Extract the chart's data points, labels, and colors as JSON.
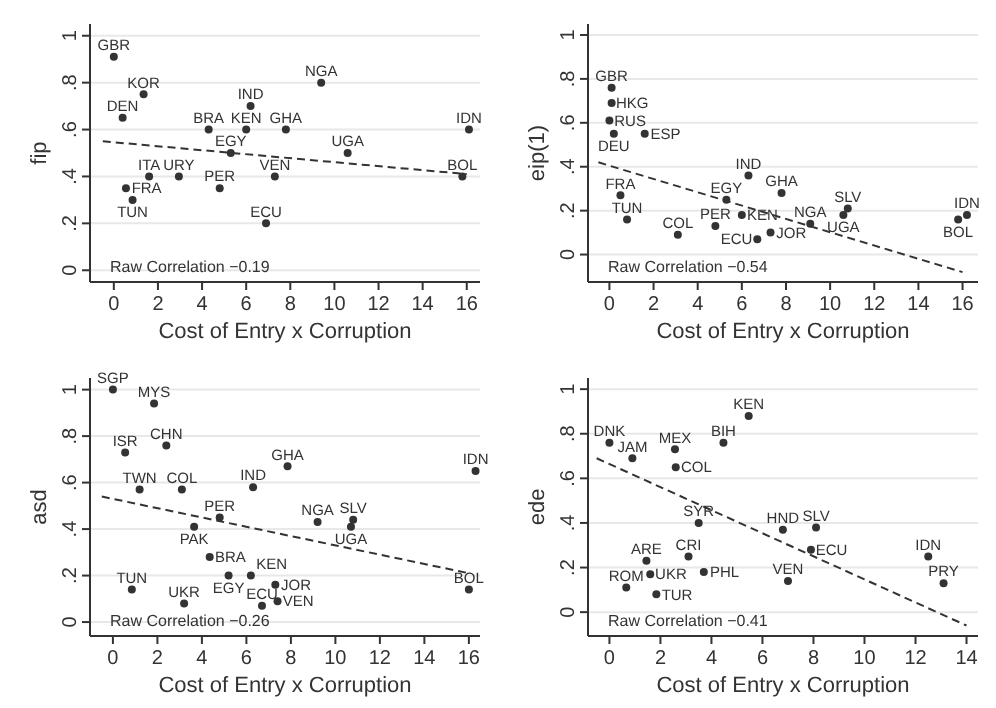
{
  "chart_data": [
    {
      "type": "scatter",
      "xlabel": "Cost of Entry x Corruption",
      "ylabel": "fip",
      "xlim": [
        -1.08,
        16.6
      ],
      "ylim": [
        -0.05,
        1.05
      ],
      "xticks": [
        0,
        2,
        4,
        6,
        8,
        10,
        12,
        14,
        16
      ],
      "yticks": [
        {
          "value": 0,
          "label": "0"
        },
        {
          "value": 0.2,
          "label": ".2"
        },
        {
          "value": 0.4,
          "label": ".4"
        },
        {
          "value": 0.6,
          "label": ".6"
        },
        {
          "value": 0.8,
          "label": ".8"
        },
        {
          "value": 1,
          "label": "1"
        }
      ],
      "grid": "y",
      "series": [
        {
          "type": "scatter",
          "marker": "circle",
          "color": "#333333",
          "x": [
            0,
            1.35,
            9.4,
            6.2,
            0.4,
            4.3,
            6,
            7.8,
            16.1,
            5.3,
            10.6,
            1.6,
            2.95,
            7.3,
            15.8,
            0.55,
            4.8,
            0.85,
            6.9
          ],
          "values": [
            0.91,
            0.75,
            0.8,
            0.7,
            0.65,
            0.6,
            0.6,
            0.6,
            0.6,
            0.5,
            0.5,
            0.4,
            0.4,
            0.4,
            0.4,
            0.35,
            0.35,
            0.3,
            0.2
          ],
          "value_labels": [
            "GBR",
            "KOR",
            "NGA",
            "IND",
            "DEN",
            "BRA",
            "KEN",
            "GHA",
            "IDN",
            "EGY",
            "UGA",
            "ITA",
            "URY",
            "VEN",
            "BOL",
            "FRA",
            "PER",
            "TUN",
            "ECU"
          ]
        },
        {
          "type": "line",
          "color": "#333333",
          "line_style": "dashed",
          "x": [
            -0.5,
            16
          ],
          "values": [
            0.55,
            0.41
          ]
        }
      ],
      "annotations": [
        "Raw Correlation −0.19"
      ]
    },
    {
      "type": "scatter",
      "xlabel": "Cost of Entry x Corruption",
      "ylabel": "eip(1)",
      "xlim": [
        -0.97,
        16.7
      ],
      "ylim": [
        -0.125,
        1.05
      ],
      "xticks": [
        0,
        2,
        4,
        6,
        8,
        10,
        12,
        14,
        16
      ],
      "yticks": [
        {
          "value": 0,
          "label": "0"
        },
        {
          "value": 0.2,
          "label": ".2"
        },
        {
          "value": 0.4,
          "label": ".4"
        },
        {
          "value": 0.6,
          "label": ".6"
        },
        {
          "value": 0.8,
          "label": ".8"
        },
        {
          "value": 1,
          "label": "1"
        }
      ],
      "grid": "y",
      "series": [
        {
          "type": "scatter",
          "marker": "circle",
          "color": "#333333",
          "x": [
            0.1,
            0.1,
            0,
            0.2,
            1.6,
            6.3,
            7.8,
            0.5,
            5.3,
            10.8,
            10.6,
            6,
            16.2,
            15.8,
            0.8,
            9.1,
            4.8,
            7.3,
            3.1,
            6.7
          ],
          "values": [
            0.76,
            0.69,
            0.61,
            0.55,
            0.55,
            0.36,
            0.28,
            0.27,
            0.25,
            0.21,
            0.18,
            0.18,
            0.18,
            0.16,
            0.16,
            0.14,
            0.13,
            0.1,
            0.09,
            0.07
          ],
          "value_labels": [
            "GBR",
            "HKG",
            "RUS",
            "DEU",
            "ESP",
            "IND",
            "GHA",
            "FRA",
            "EGY",
            "SLV",
            "UGA",
            "KEN",
            "IDN",
            "BOL",
            "TUN",
            "NGA",
            "PER",
            "JOR",
            "COL",
            "ECU"
          ]
        },
        {
          "type": "line",
          "color": "#333333",
          "line_style": "dashed",
          "x": [
            -0.5,
            16
          ],
          "values": [
            0.42,
            -0.08
          ]
        }
      ],
      "annotations": [
        "Raw Correlation −0.54"
      ]
    },
    {
      "type": "scatter",
      "xlabel": "Cost of Entry x Corruption",
      "ylabel": "asd",
      "xlim": [
        -1.03,
        16.5
      ],
      "ylim": [
        -0.06,
        1.05
      ],
      "xticks": [
        0,
        2,
        4,
        6,
        8,
        10,
        12,
        14,
        16
      ],
      "yticks": [
        {
          "value": 0,
          "label": "0"
        },
        {
          "value": 0.2,
          "label": ".2"
        },
        {
          "value": 0.4,
          "label": ".4"
        },
        {
          "value": 0.6,
          "label": ".6"
        },
        {
          "value": 0.8,
          "label": ".8"
        },
        {
          "value": 1,
          "label": "1"
        }
      ],
      "grid": "y",
      "series": [
        {
          "type": "scatter",
          "marker": "circle",
          "color": "#333333",
          "x": [
            0,
            1.85,
            2.4,
            0.55,
            7.85,
            16.3,
            6.3,
            1.2,
            3.1,
            4.8,
            10.8,
            9.2,
            3.65,
            10.7,
            4.35,
            5.2,
            6.2,
            7.3,
            0.85,
            16,
            7.4,
            3.2,
            6.7
          ],
          "values": [
            1,
            0.94,
            0.76,
            0.73,
            0.67,
            0.65,
            0.58,
            0.57,
            0.57,
            0.45,
            0.44,
            0.43,
            0.41,
            0.41,
            0.28,
            0.2,
            0.2,
            0.16,
            0.14,
            0.14,
            0.09,
            0.08,
            0.07
          ],
          "value_labels": [
            "SGP",
            "MYS",
            "CHN",
            "ISR",
            "GHA",
            "IDN",
            "IND",
            "TWN",
            "COL",
            "PER",
            "SLV",
            "NGA",
            "PAK",
            "UGA",
            "BRA",
            "EGY",
            "KEN",
            "JOR",
            "TUN",
            "BOL",
            "VEN",
            "UKR",
            "ECU"
          ]
        },
        {
          "type": "line",
          "color": "#333333",
          "line_style": "dashed",
          "x": [
            -0.5,
            16
          ],
          "values": [
            0.54,
            0.21
          ]
        }
      ],
      "annotations": [
        "Raw Correlation −0.26"
      ]
    },
    {
      "type": "scatter",
      "xlabel": "Cost of Entry x Corruption",
      "ylabel": "ede",
      "xlim": [
        -0.84,
        14.45
      ],
      "ylim": [
        -0.107,
        1.05
      ],
      "xticks": [
        0,
        2,
        4,
        6,
        8,
        10,
        12,
        14
      ],
      "yticks": [
        {
          "value": 0,
          "label": "0"
        },
        {
          "value": 0.2,
          "label": ".2"
        },
        {
          "value": 0.4,
          "label": ".4"
        },
        {
          "value": 0.6,
          "label": ".6"
        },
        {
          "value": 0.8,
          "label": ".8"
        },
        {
          "value": 1,
          "label": "1"
        }
      ],
      "grid": "y",
      "series": [
        {
          "type": "scatter",
          "marker": "circle",
          "color": "#333333",
          "x": [
            5.46,
            0,
            4.47,
            2.57,
            0.9,
            2.6,
            3.5,
            8.1,
            6.8,
            7.9,
            12.5,
            3.1,
            1.45,
            3.7,
            1.6,
            7,
            13.1,
            0.66,
            1.84
          ],
          "values": [
            0.88,
            0.76,
            0.76,
            0.73,
            0.69,
            0.65,
            0.4,
            0.38,
            0.37,
            0.28,
            0.25,
            0.25,
            0.23,
            0.18,
            0.17,
            0.14,
            0.13,
            0.11,
            0.08
          ],
          "value_labels": [
            "KEN",
            "DNK",
            "BIH",
            "MEX",
            "JAM",
            "COL",
            "SYR",
            "SLV",
            "HND",
            "ECU",
            "IDN",
            "CRI",
            "ARE",
            "PHL",
            "UKR",
            "VEN",
            "PRY",
            "ROM",
            "TUR"
          ]
        },
        {
          "type": "line",
          "color": "#333333",
          "line_style": "dashed",
          "x": [
            -0.5,
            14
          ],
          "values": [
            0.69,
            -0.06
          ]
        }
      ],
      "annotations": [
        "Raw Correlation −0.41"
      ]
    }
  ]
}
